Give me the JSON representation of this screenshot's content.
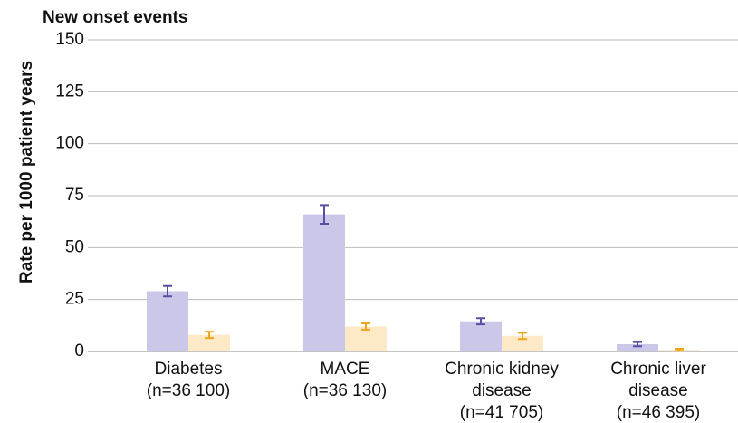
{
  "chart_data": {
    "type": "bar",
    "title": "New onset events",
    "y_label": "Rate per 1000 patient years",
    "categories": [
      [
        "Diabetes",
        "(n=36 100)"
      ],
      [
        "MACE",
        "(n=36 130)"
      ],
      [
        "Chronic kidney",
        "disease",
        "(n=41 705)"
      ],
      [
        "Chronic liver",
        "disease",
        "(n=46 395)"
      ]
    ],
    "series": [
      {
        "color": "#cbc7e8",
        "error_color": "#5a4e9e",
        "values": [
          29,
          66,
          14.5,
          3.5
        ],
        "errors": [
          2.5,
          4.5,
          1.5,
          1
        ]
      },
      {
        "color": "#fde9c6",
        "error_color": "#efa41a",
        "values": [
          8,
          12,
          7.5,
          0.8
        ],
        "errors": [
          1.5,
          1.5,
          1.5,
          0.5
        ]
      }
    ],
    "ylim": [
      0,
      150
    ],
    "yticks": [
      0,
      25,
      50,
      75,
      100,
      125,
      150
    ],
    "grid": true
  }
}
